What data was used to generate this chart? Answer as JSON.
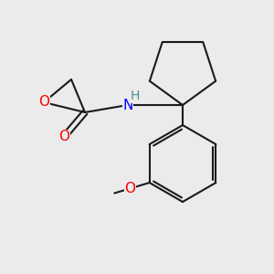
{
  "background_color": "#EBEBEB",
  "bond_color": "#1a1a1a",
  "bond_width": 1.5,
  "atom_colors": {
    "O": "#ff0000",
    "N": "#0000ff",
    "H": "#4a9090",
    "C": "#1a1a1a"
  },
  "font_size_atom": 11,
  "font_size_H": 10
}
